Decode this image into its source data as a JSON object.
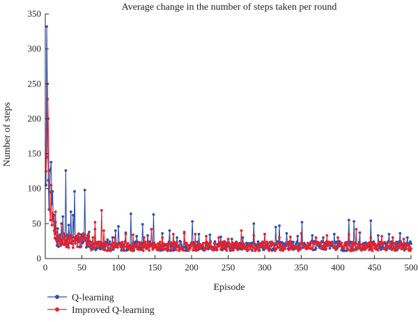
{
  "chart_data": {
    "type": "line",
    "title": "Average change in the number of steps taken per round",
    "xlabel": "Episode",
    "ylabel": "Number of steps",
    "xlim": [
      0,
      500
    ],
    "ylim": [
      0,
      350
    ],
    "xticks": [
      0,
      50,
      100,
      150,
      200,
      250,
      300,
      350,
      400,
      450,
      500
    ],
    "yticks": [
      0,
      50,
      100,
      150,
      200,
      250,
      300,
      350
    ],
    "grid": false,
    "legend_position": "bottom-left",
    "series": [
      {
        "name": "Q-learning",
        "color": "#2f4fa8",
        "marker": "circle",
        "peaks": [
          [
            1,
            105
          ],
          [
            2,
            332
          ],
          [
            3,
            228
          ],
          [
            4,
            112
          ],
          [
            5,
            70
          ],
          [
            6,
            95
          ],
          [
            7,
            127
          ],
          [
            8,
            138
          ],
          [
            9,
            78
          ],
          [
            10,
            96
          ],
          [
            12,
            62
          ],
          [
            14,
            52
          ],
          [
            17,
            43
          ],
          [
            20,
            34
          ],
          [
            24,
            60
          ],
          [
            28,
            126
          ],
          [
            30,
            34
          ],
          [
            32,
            48
          ],
          [
            35,
            67
          ],
          [
            38,
            62
          ],
          [
            40,
            96
          ],
          [
            45,
            35
          ],
          [
            50,
            32
          ],
          [
            54,
            98
          ],
          [
            60,
            38
          ],
          [
            68,
            42
          ],
          [
            85,
            27
          ],
          [
            92,
            30
          ],
          [
            96,
            40
          ],
          [
            100,
            46
          ],
          [
            110,
            37
          ],
          [
            117,
            64
          ],
          [
            125,
            32
          ],
          [
            133,
            49
          ],
          [
            140,
            33
          ],
          [
            148,
            63
          ],
          [
            160,
            36
          ],
          [
            170,
            40
          ],
          [
            180,
            30
          ],
          [
            190,
            36
          ],
          [
            201,
            53
          ],
          [
            210,
            35
          ],
          [
            225,
            34
          ],
          [
            240,
            31
          ],
          [
            255,
            28
          ],
          [
            270,
            30
          ],
          [
            285,
            50
          ],
          [
            300,
            35
          ],
          [
            315,
            45
          ],
          [
            320,
            47
          ],
          [
            330,
            36
          ],
          [
            345,
            32
          ],
          [
            351,
            52
          ],
          [
            365,
            33
          ],
          [
            380,
            30
          ],
          [
            395,
            35
          ],
          [
            415,
            55
          ],
          [
            422,
            53
          ],
          [
            430,
            37
          ],
          [
            445,
            54
          ],
          [
            455,
            33
          ],
          [
            470,
            35
          ],
          [
            485,
            36
          ],
          [
            495,
            30
          ]
        ]
      },
      {
        "name": "Improved Q-learning",
        "color": "#e8202a",
        "marker": "circle",
        "peaks": [
          [
            1,
            125
          ],
          [
            2,
            145
          ],
          [
            3,
            250
          ],
          [
            4,
            200
          ],
          [
            5,
            125
          ],
          [
            6,
            70
          ],
          [
            7,
            55
          ],
          [
            8,
            105
          ],
          [
            9,
            48
          ],
          [
            10,
            65
          ],
          [
            12,
            40
          ],
          [
            15,
            38
          ],
          [
            18,
            30
          ],
          [
            22,
            50
          ],
          [
            27,
            32
          ],
          [
            33,
            28
          ],
          [
            40,
            30
          ],
          [
            47,
            25
          ],
          [
            55,
            26
          ],
          [
            65,
            30
          ],
          [
            68,
            52
          ],
          [
            77,
            69
          ],
          [
            80,
            40
          ],
          [
            95,
            30
          ],
          [
            110,
            35
          ],
          [
            120,
            34
          ],
          [
            135,
            30
          ],
          [
            145,
            42
          ],
          [
            160,
            30
          ],
          [
            175,
            35
          ],
          [
            190,
            38
          ],
          [
            205,
            35
          ],
          [
            220,
            32
          ],
          [
            237,
            30
          ],
          [
            250,
            28
          ],
          [
            268,
            40
          ],
          [
            285,
            33
          ],
          [
            300,
            35
          ],
          [
            320,
            30
          ],
          [
            335,
            31
          ],
          [
            350,
            36
          ],
          [
            370,
            30
          ],
          [
            385,
            33
          ],
          [
            400,
            30
          ],
          [
            415,
            35
          ],
          [
            425,
            42
          ],
          [
            445,
            30
          ],
          [
            460,
            32
          ],
          [
            475,
            30
          ],
          [
            490,
            28
          ]
        ]
      }
    ]
  }
}
